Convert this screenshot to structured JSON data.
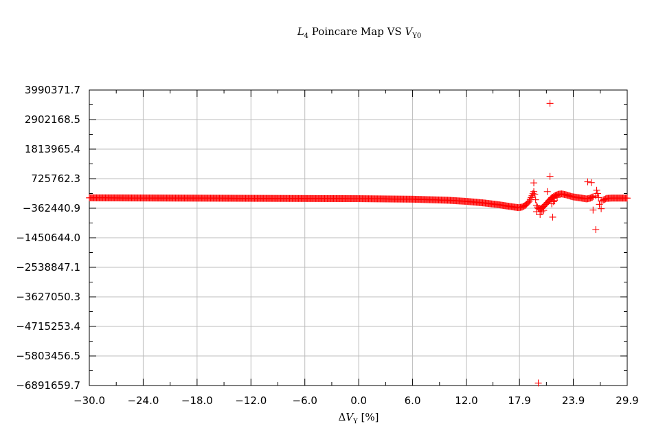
{
  "chart_data": {
    "type": "scatter",
    "title": "L4 Poincare Map VS VY0",
    "title_parts": {
      "main": "L",
      "main_sub": "4",
      "mid": " Poincare Map VS ",
      "var": "V",
      "var_sub": "Y0"
    },
    "xlabel": "ΔVY [%]",
    "xlabel_parts": {
      "prefix": "Δ",
      "var": "V",
      "sub": "Y",
      "suffix": " [%]"
    },
    "ylabel": "",
    "xlim": [
      -30.0,
      29.9
    ],
    "ylim": [
      -6891659.7,
      3990371.7
    ],
    "x_ticks": [
      "−30.0",
      "−24.0",
      "−18.0",
      "−12.0",
      "−6.0",
      "0.0",
      "6.0",
      "12.0",
      "17.9",
      "23.9",
      "29.9"
    ],
    "x_tick_values": [
      -30.0,
      -24.0,
      -18.0,
      -12.0,
      -6.0,
      0.0,
      6.0,
      12.0,
      17.9,
      23.9,
      29.9
    ],
    "y_ticks": [
      "3990371.7",
      "2902168.5",
      "1813965.4",
      "725762.3",
      "−362440.9",
      "−1450644.0",
      "−2538847.1",
      "−3627050.3",
      "−4715253.4",
      "−5803456.5",
      "−6891659.7"
    ],
    "y_tick_values": [
      3990371.7,
      2902168.5,
      1813965.4,
      725762.3,
      -362440.9,
      -1450644.0,
      -2538847.1,
      -3627050.3,
      -4715253.4,
      -5803456.5,
      -6891659.7
    ],
    "grid": true,
    "marker": "plus",
    "series": [
      {
        "color": "#ff0000",
        "main_band": {
          "x_from": -30.0,
          "x_to": 29.9,
          "step": 0.1,
          "flat_value": 0,
          "sparse_x_ranges": [
            [
              26.2,
              27.2
            ]
          ],
          "trend_points": [
            [
              -30.0,
              20000
            ],
            [
              -20.0,
              10000
            ],
            [
              -10.0,
              0
            ],
            [
              0.0,
              -10000
            ],
            [
              6.0,
              -30000
            ],
            [
              10.0,
              -70000
            ],
            [
              12.0,
              -110000
            ],
            [
              14.0,
              -170000
            ],
            [
              15.5,
              -230000
            ],
            [
              16.5,
              -280000
            ],
            [
              17.3,
              -320000
            ],
            [
              17.8,
              -340000
            ],
            [
              18.2,
              -320000
            ],
            [
              18.6,
              -250000
            ],
            [
              19.0,
              -100000
            ],
            [
              19.3,
              100000
            ],
            [
              19.5,
              250000
            ],
            [
              19.6,
              150000
            ],
            [
              19.7,
              -50000
            ],
            [
              19.8,
              -260000
            ],
            [
              20.0,
              -380000
            ],
            [
              20.3,
              -380000
            ],
            [
              20.6,
              -300000
            ],
            [
              21.0,
              -150000
            ],
            [
              21.4,
              -10000
            ],
            [
              21.8,
              90000
            ],
            [
              22.2,
              150000
            ],
            [
              22.6,
              165000
            ],
            [
              23.0,
              140000
            ],
            [
              23.4,
              100000
            ],
            [
              23.8,
              60000
            ],
            [
              24.2,
              40000
            ],
            [
              24.6,
              20000
            ],
            [
              25.0,
              0
            ],
            [
              25.4,
              -20000
            ],
            [
              25.8,
              10000
            ],
            [
              26.2,
              80000
            ],
            [
              26.5,
              100000
            ],
            [
              26.8,
              0
            ],
            [
              27.0,
              -100000
            ],
            [
              27.3,
              -50000
            ],
            [
              27.6,
              0
            ],
            [
              28.2,
              10000
            ],
            [
              29.9,
              10000
            ]
          ]
        },
        "scatter_points": [
          [
            19.5,
            570000
          ],
          [
            19.8,
            -490000
          ],
          [
            20.2,
            -490000
          ],
          [
            20.4,
            -490000
          ],
          [
            20.6,
            -440000
          ],
          [
            20.2,
            -590000
          ],
          [
            21.0,
            250000
          ],
          [
            21.3,
            810000
          ],
          [
            21.5,
            30000
          ],
          [
            21.5,
            -200000
          ],
          [
            21.6,
            -690000
          ],
          [
            21.7,
            -120000
          ],
          [
            21.8,
            -80000
          ],
          [
            22.0,
            110000
          ],
          [
            22.1,
            40000
          ],
          [
            25.5,
            610000
          ],
          [
            25.9,
            580000
          ],
          [
            26.0,
            30000
          ],
          [
            26.1,
            -430000
          ],
          [
            26.5,
            300000
          ],
          [
            26.6,
            180000
          ],
          [
            26.4,
            -1150000
          ],
          [
            26.8,
            -220000
          ],
          [
            21.3,
            3500000
          ],
          [
            20.0,
            -6800000
          ],
          [
            27.0,
            -380000
          ]
        ]
      }
    ]
  }
}
